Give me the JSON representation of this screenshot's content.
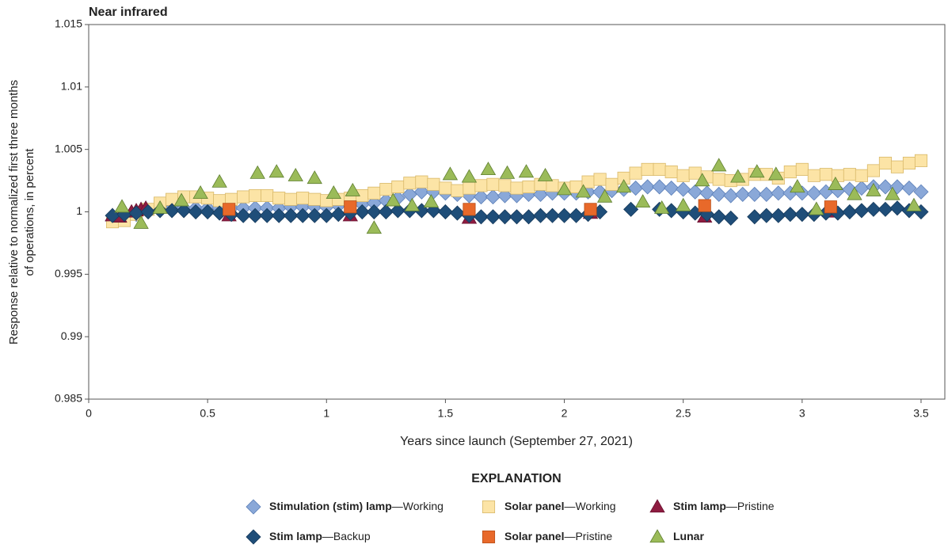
{
  "chart_data": {
    "type": "scatter",
    "title": "Near infrared",
    "xlabel": "Years since launch (September 27, 2021)",
    "ylabel": [
      "Response relative to normalized first three months",
      "of operations, in percent"
    ],
    "legend_title": "EXPLANATION",
    "xlim": [
      0,
      3.6
    ],
    "ylim": [
      0.985,
      1.015
    ],
    "xticks": [
      0,
      0.5,
      1,
      1.5,
      2,
      2.5,
      3,
      3.5
    ],
    "yticks": [
      0.985,
      0.99,
      0.995,
      1,
      1.005,
      1.01,
      1.015
    ],
    "series": [
      {
        "name": "Stimulation (stim) lamp—Working",
        "marker": "diamond",
        "color": "#8aa8d8",
        "edge": "#5b7fb8",
        "x": [
          0.1,
          0.15,
          0.2,
          0.25,
          0.3,
          0.35,
          0.4,
          0.45,
          0.5,
          0.55,
          0.6,
          0.65,
          0.7,
          0.75,
          0.8,
          0.85,
          0.9,
          0.95,
          1.0,
          1.05,
          1.1,
          1.15,
          1.2,
          1.25,
          1.3,
          1.35,
          1.4,
          1.45,
          1.5,
          1.55,
          1.6,
          1.65,
          1.7,
          1.75,
          1.8,
          1.85,
          1.9,
          1.95,
          2.0,
          2.05,
          2.1,
          2.15,
          2.2,
          2.25,
          2.3,
          2.35,
          2.4,
          2.45,
          2.5,
          2.55,
          2.6,
          2.65,
          2.7,
          2.75,
          2.8,
          2.85,
          2.9,
          2.95,
          3.0,
          3.05,
          3.1,
          3.15,
          3.2,
          3.25,
          3.3,
          3.35,
          3.4,
          3.45,
          3.5
        ],
        "values": [
          0.9993,
          0.9995,
          0.9998,
          1.0001,
          1.0002,
          1.0003,
          1.0003,
          1.0003,
          1.0003,
          1.0003,
          1.0003,
          1.0003,
          1.0003,
          1.0003,
          1.0003,
          1.0004,
          1.0004,
          1.0004,
          1.0004,
          1.0005,
          1.0005,
          1.0006,
          1.0007,
          1.0009,
          1.0011,
          1.0014,
          1.0016,
          1.0016,
          1.0015,
          1.0014,
          1.0013,
          1.0012,
          1.0012,
          1.0013,
          1.0013,
          1.0014,
          1.0014,
          1.0015,
          1.0015,
          1.0015,
          1.0016,
          1.0016,
          1.0017,
          1.0018,
          1.0019,
          1.002,
          1.002,
          1.0019,
          1.0018,
          1.0016,
          1.0015,
          1.0014,
          1.0013,
          1.0014,
          1.0014,
          1.0014,
          1.0015,
          1.0015,
          1.0015,
          1.0015,
          1.0016,
          1.0017,
          1.0018,
          1.0019,
          1.002,
          1.002,
          1.002,
          1.0019,
          1.0016
        ]
      },
      {
        "name": "Solar panel—Working",
        "marker": "square",
        "color": "#fce4a6",
        "edge": "#d8b868",
        "x": [
          0.1,
          0.15,
          0.2,
          0.25,
          0.3,
          0.35,
          0.4,
          0.45,
          0.5,
          0.55,
          0.6,
          0.65,
          0.7,
          0.75,
          0.8,
          0.85,
          0.9,
          0.95,
          1.0,
          1.05,
          1.1,
          1.15,
          1.2,
          1.25,
          1.3,
          1.35,
          1.4,
          1.45,
          1.5,
          1.55,
          1.6,
          1.65,
          1.7,
          1.75,
          1.8,
          1.85,
          1.9,
          1.95,
          2.0,
          2.05,
          2.1,
          2.15,
          2.2,
          2.25,
          2.3,
          2.35,
          2.4,
          2.45,
          2.5,
          2.55,
          2.6,
          2.65,
          2.7,
          2.75,
          2.8,
          2.85,
          2.9,
          2.95,
          3.0,
          3.05,
          3.1,
          3.15,
          3.2,
          3.25,
          3.3,
          3.35,
          3.4,
          3.45,
          3.5
        ],
        "values": [
          0.9992,
          0.9993,
          0.9998,
          1.0002,
          1.0007,
          1.001,
          1.0012,
          1.0012,
          1.0011,
          1.0009,
          1.001,
          1.0012,
          1.0013,
          1.0013,
          1.0011,
          1.001,
          1.0011,
          1.001,
          1.0009,
          1.001,
          1.0011,
          1.0013,
          1.0015,
          1.0018,
          1.002,
          1.0023,
          1.0024,
          1.0022,
          1.0019,
          1.0017,
          1.0019,
          1.0021,
          1.0022,
          1.0021,
          1.0019,
          1.002,
          1.0022,
          1.0021,
          1.0019,
          1.002,
          1.0024,
          1.0026,
          1.0022,
          1.0027,
          1.0031,
          1.0034,
          1.0034,
          1.0032,
          1.0029,
          1.0031,
          1.0028,
          1.0026,
          1.0025,
          1.0026,
          1.003,
          1.003,
          1.0027,
          1.0032,
          1.0034,
          1.0029,
          1.003,
          1.0029,
          1.003,
          1.0029,
          1.0033,
          1.0039,
          1.0036,
          1.0039,
          1.0041
        ]
      },
      {
        "name": "Stim lamp—Pristine",
        "marker": "triangle",
        "color": "#8e1c40",
        "edge": "#6a1030",
        "x": [
          0.1,
          0.13,
          0.18,
          0.2,
          0.22,
          0.24,
          0.59,
          1.1,
          1.6,
          2.11,
          2.59,
          3.12
        ],
        "values": [
          0.9997,
          0.9996,
          1.0,
          1.0001,
          1.0002,
          1.0003,
          0.9997,
          0.9997,
          0.9995,
          0.9999,
          0.9996,
          1.0
        ]
      },
      {
        "name": "Stim lamp—Backup",
        "marker": "diamond",
        "color": "#1f4e79",
        "edge": "#163a5c",
        "x": [
          0.1,
          0.15,
          0.2,
          0.25,
          0.3,
          0.35,
          0.4,
          0.45,
          0.5,
          0.55,
          0.6,
          0.65,
          0.7,
          0.75,
          0.8,
          0.85,
          0.9,
          0.95,
          1.0,
          1.05,
          1.1,
          1.15,
          1.2,
          1.25,
          1.3,
          1.35,
          1.4,
          1.45,
          1.5,
          1.55,
          1.6,
          1.65,
          1.7,
          1.75,
          1.8,
          1.85,
          1.9,
          1.95,
          2.0,
          2.05,
          2.1,
          2.15,
          2.28,
          2.4,
          2.45,
          2.5,
          2.55,
          2.6,
          2.65,
          2.7,
          2.8,
          2.85,
          2.9,
          2.95,
          3.0,
          3.05,
          3.1,
          3.15,
          3.2,
          3.25,
          3.3,
          3.35,
          3.4,
          3.45,
          3.5
        ],
        "values": [
          0.9997,
          0.9998,
          0.9999,
          1.0,
          1.0001,
          1.0001,
          1.0001,
          1.0,
          1.0,
          0.9999,
          0.9998,
          0.9997,
          0.9997,
          0.9997,
          0.9997,
          0.9997,
          0.9997,
          0.9997,
          0.9997,
          0.9998,
          0.9999,
          1.0,
          1.0,
          1.0,
          1.0001,
          1.0001,
          1.0001,
          1.0001,
          1.0,
          0.9999,
          0.9997,
          0.9996,
          0.9996,
          0.9996,
          0.9996,
          0.9996,
          0.9997,
          0.9997,
          0.9997,
          0.9997,
          0.9998,
          1.0,
          1.0002,
          1.0002,
          1.0001,
          1.0,
          0.9999,
          0.9998,
          0.9996,
          0.9995,
          0.9996,
          0.9997,
          0.9997,
          0.9998,
          0.9998,
          0.9998,
          0.9999,
          0.9999,
          1.0,
          1.0001,
          1.0002,
          1.0002,
          1.0003,
          1.0001,
          1.0
        ]
      },
      {
        "name": "Solar panel—Pristine",
        "marker": "square",
        "color": "#e8692a",
        "edge": "#b84e18",
        "x": [
          0.59,
          1.1,
          1.6,
          2.11,
          2.59,
          3.12
        ],
        "values": [
          1.0002,
          1.0004,
          1.0002,
          1.0002,
          1.0005,
          1.0004
        ]
      },
      {
        "name": "Lunar",
        "marker": "triangle",
        "color": "#9bbb59",
        "edge": "#5f7f30",
        "x": [
          0.14,
          0.22,
          0.3,
          0.39,
          0.47,
          0.55,
          0.71,
          0.79,
          0.87,
          0.95,
          1.03,
          1.11,
          1.2,
          1.28,
          1.36,
          1.44,
          1.52,
          1.6,
          1.68,
          1.76,
          1.84,
          1.92,
          2.0,
          2.08,
          2.17,
          2.25,
          2.33,
          2.41,
          2.5,
          2.58,
          2.65,
          2.73,
          2.81,
          2.89,
          2.98,
          3.06,
          3.14,
          3.22,
          3.3,
          3.38,
          3.47
        ],
        "values": [
          1.0004,
          0.9991,
          1.0003,
          1.0009,
          1.0015,
          1.0024,
          1.0031,
          1.0032,
          1.0029,
          1.0027,
          1.0015,
          1.0017,
          0.9987,
          1.0009,
          1.0005,
          1.0008,
          1.003,
          1.0028,
          1.0034,
          1.0031,
          1.0032,
          1.0029,
          1.0018,
          1.0016,
          1.0012,
          1.002,
          1.0008,
          1.0003,
          1.0005,
          1.0025,
          1.0037,
          1.0028,
          1.0032,
          1.003,
          1.002,
          1.0002,
          1.0022,
          1.0014,
          1.0017,
          1.0014,
          1.0005
        ]
      }
    ]
  }
}
